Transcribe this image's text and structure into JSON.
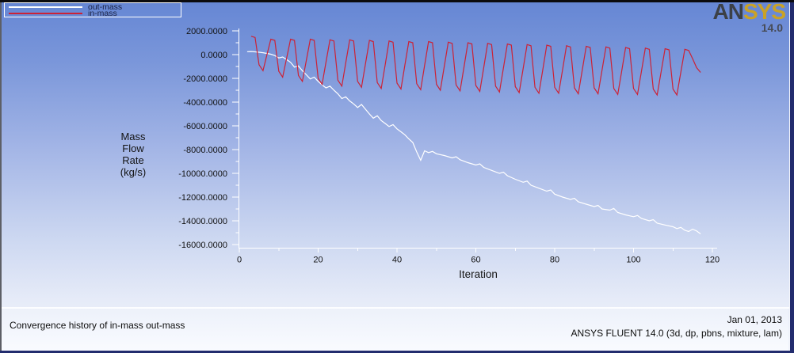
{
  "legend": {
    "items": [
      {
        "label": "out-mass"
      },
      {
        "label": "in-mass"
      }
    ]
  },
  "logo": {
    "brand_dark": "AN",
    "brand_gold": "SYS",
    "version": "14.0"
  },
  "footer": {
    "caption": "Convergence history of in-mass out-mass",
    "date": "Jan 01, 2013",
    "app": "ANSYS FLUENT 14.0 (3d, dp, pbns, mixture, lam)"
  },
  "colors": {
    "axis": "#ffffff",
    "tick_text": "#121212",
    "out_mass": "#ffffff",
    "in_mass": "#cc2236"
  },
  "chart_data": {
    "type": "line",
    "title": "",
    "xlabel": "Iteration",
    "ylabel": "Mass Flow Rate (kg/s)",
    "ylabel_lines": [
      "Mass",
      "Flow",
      "Rate",
      "(kg/s)"
    ],
    "xlim": [
      0,
      120
    ],
    "ylim": [
      -16000,
      2000
    ],
    "grid": false,
    "legend_position": "top-left",
    "x_ticks": [
      0,
      20,
      40,
      60,
      80,
      100,
      120
    ],
    "x_minor_ticks": [
      10,
      30,
      50,
      70,
      90,
      110
    ],
    "y_tick_values": [
      2000,
      0,
      -2000,
      -4000,
      -6000,
      -8000,
      -10000,
      -12000,
      -14000,
      -16000
    ],
    "y_tick_labels": [
      "2000.0000",
      "0.0000",
      "-2000.0000",
      "-4000.0000",
      "-6000.0000",
      "-8000.0000",
      "-10000.0000",
      "-12000.0000",
      "-14000.0000",
      "-16000.0000"
    ],
    "series": [
      {
        "name": "out-mass",
        "color": "#ffffff",
        "points": [
          [
            2,
            250
          ],
          [
            3,
            260
          ],
          [
            4,
            230
          ],
          [
            5,
            200
          ],
          [
            6,
            160
          ],
          [
            7,
            100
          ],
          [
            8,
            30
          ],
          [
            9,
            -80
          ],
          [
            10,
            -280
          ],
          [
            11,
            -200
          ],
          [
            12,
            -420
          ],
          [
            13,
            -650
          ],
          [
            14,
            -1050
          ],
          [
            15,
            -950
          ],
          [
            16,
            -1350
          ],
          [
            17,
            -1700
          ],
          [
            18,
            -2050
          ],
          [
            19,
            -1900
          ],
          [
            20,
            -2250
          ],
          [
            21,
            -2550
          ],
          [
            22,
            -2800
          ],
          [
            23,
            -2650
          ],
          [
            24,
            -3000
          ],
          [
            25,
            -3300
          ],
          [
            26,
            -3700
          ],
          [
            27,
            -3550
          ],
          [
            28,
            -3900
          ],
          [
            29,
            -4150
          ],
          [
            30,
            -4450
          ],
          [
            31,
            -4200
          ],
          [
            32,
            -4600
          ],
          [
            33,
            -5000
          ],
          [
            34,
            -5350
          ],
          [
            35,
            -5150
          ],
          [
            36,
            -5550
          ],
          [
            37,
            -5800
          ],
          [
            38,
            -6050
          ],
          [
            39,
            -5900
          ],
          [
            40,
            -6250
          ],
          [
            41,
            -6500
          ],
          [
            42,
            -6750
          ],
          [
            43,
            -7100
          ],
          [
            44,
            -7400
          ],
          [
            45,
            -8200
          ],
          [
            46,
            -8900
          ],
          [
            47,
            -8100
          ],
          [
            48,
            -8250
          ],
          [
            49,
            -8150
          ],
          [
            50,
            -8350
          ],
          [
            52,
            -8500
          ],
          [
            54,
            -8700
          ],
          [
            55,
            -8600
          ],
          [
            56,
            -8850
          ],
          [
            58,
            -9100
          ],
          [
            60,
            -9300
          ],
          [
            61,
            -9200
          ],
          [
            62,
            -9500
          ],
          [
            64,
            -9750
          ],
          [
            66,
            -10000
          ],
          [
            67,
            -9900
          ],
          [
            68,
            -10200
          ],
          [
            70,
            -10500
          ],
          [
            72,
            -10750
          ],
          [
            73,
            -10650
          ],
          [
            74,
            -11000
          ],
          [
            76,
            -11250
          ],
          [
            78,
            -11500
          ],
          [
            79,
            -11400
          ],
          [
            80,
            -11750
          ],
          [
            82,
            -12000
          ],
          [
            84,
            -12200
          ],
          [
            85,
            -12100
          ],
          [
            86,
            -12400
          ],
          [
            88,
            -12600
          ],
          [
            90,
            -12800
          ],
          [
            91,
            -12700
          ],
          [
            92,
            -13000
          ],
          [
            94,
            -13100
          ],
          [
            95,
            -12950
          ],
          [
            96,
            -13300
          ],
          [
            98,
            -13500
          ],
          [
            100,
            -13650
          ],
          [
            101,
            -13550
          ],
          [
            102,
            -13800
          ],
          [
            104,
            -14000
          ],
          [
            105,
            -13900
          ],
          [
            106,
            -14200
          ],
          [
            108,
            -14350
          ],
          [
            110,
            -14500
          ],
          [
            111,
            -14650
          ],
          [
            112,
            -14550
          ],
          [
            113,
            -14800
          ],
          [
            114,
            -14900
          ],
          [
            115,
            -14700
          ],
          [
            116,
            -14850
          ],
          [
            117,
            -15100
          ]
        ]
      },
      {
        "name": "in-mass",
        "color": "#cc2236",
        "points": [
          [
            3,
            1550
          ],
          [
            4,
            1450
          ],
          [
            5,
            -850
          ],
          [
            6,
            -1350
          ],
          [
            7,
            -25
          ],
          [
            8,
            1300
          ],
          [
            9,
            1200
          ],
          [
            10,
            -1400
          ],
          [
            11,
            -1900
          ],
          [
            12,
            -300
          ],
          [
            13,
            1300
          ],
          [
            14,
            1200
          ],
          [
            15,
            -1750
          ],
          [
            16,
            -2250
          ],
          [
            17,
            -475
          ],
          [
            18,
            1300
          ],
          [
            19,
            1200
          ],
          [
            20,
            -2000
          ],
          [
            21,
            -2500
          ],
          [
            22,
            -625
          ],
          [
            23,
            1250
          ],
          [
            24,
            1150
          ],
          [
            25,
            -2150
          ],
          [
            26,
            -2650
          ],
          [
            27,
            -700
          ],
          [
            28,
            1250
          ],
          [
            29,
            1150
          ],
          [
            30,
            -2250
          ],
          [
            31,
            -2750
          ],
          [
            32,
            -775
          ],
          [
            33,
            1200
          ],
          [
            34,
            1100
          ],
          [
            35,
            -2350
          ],
          [
            36,
            -2850
          ],
          [
            37,
            -850
          ],
          [
            38,
            1150
          ],
          [
            39,
            1050
          ],
          [
            40,
            -2400
          ],
          [
            41,
            -2900
          ],
          [
            42,
            -900
          ],
          [
            43,
            1100
          ],
          [
            44,
            1000
          ],
          [
            45,
            -2450
          ],
          [
            46,
            -2950
          ],
          [
            47,
            -925
          ],
          [
            48,
            1100
          ],
          [
            49,
            1000
          ],
          [
            50,
            -2500
          ],
          [
            51,
            -3000
          ],
          [
            52,
            -975
          ],
          [
            53,
            1050
          ],
          [
            54,
            950
          ],
          [
            55,
            -2550
          ],
          [
            56,
            -3050
          ],
          [
            57,
            -1025
          ],
          [
            58,
            1000
          ],
          [
            59,
            900
          ],
          [
            60,
            -2600
          ],
          [
            61,
            -3100
          ],
          [
            62,
            -1075
          ],
          [
            63,
            950
          ],
          [
            64,
            850
          ],
          [
            65,
            -2650
          ],
          [
            66,
            -3150
          ],
          [
            67,
            -1125
          ],
          [
            68,
            900
          ],
          [
            69,
            800
          ],
          [
            70,
            -2700
          ],
          [
            71,
            -3200
          ],
          [
            72,
            -1175
          ],
          [
            73,
            850
          ],
          [
            74,
            750
          ],
          [
            75,
            -2750
          ],
          [
            76,
            -3250
          ],
          [
            77,
            -1225
          ],
          [
            78,
            800
          ],
          [
            79,
            700
          ],
          [
            80,
            -2750
          ],
          [
            81,
            -3250
          ],
          [
            82,
            -1250
          ],
          [
            83,
            750
          ],
          [
            84,
            650
          ],
          [
            85,
            -2800
          ],
          [
            86,
            -3300
          ],
          [
            87,
            -1300
          ],
          [
            88,
            700
          ],
          [
            89,
            600
          ],
          [
            90,
            -2800
          ],
          [
            91,
            -3300
          ],
          [
            92,
            -1325
          ],
          [
            93,
            650
          ],
          [
            94,
            550
          ],
          [
            95,
            -2850
          ],
          [
            96,
            -3350
          ],
          [
            97,
            -1375
          ],
          [
            98,
            600
          ],
          [
            99,
            500
          ],
          [
            100,
            -2850
          ],
          [
            101,
            -3350
          ],
          [
            102,
            -1400
          ],
          [
            103,
            550
          ],
          [
            104,
            450
          ],
          [
            105,
            -2900
          ],
          [
            106,
            -3400
          ],
          [
            107,
            -1450
          ],
          [
            108,
            500
          ],
          [
            109,
            400
          ],
          [
            110,
            -2900
          ],
          [
            111,
            -3400
          ],
          [
            112,
            -1475
          ],
          [
            113,
            450
          ],
          [
            114,
            350
          ],
          [
            115,
            -350
          ],
          [
            116,
            -1100
          ],
          [
            117,
            -1500
          ]
        ]
      }
    ]
  }
}
